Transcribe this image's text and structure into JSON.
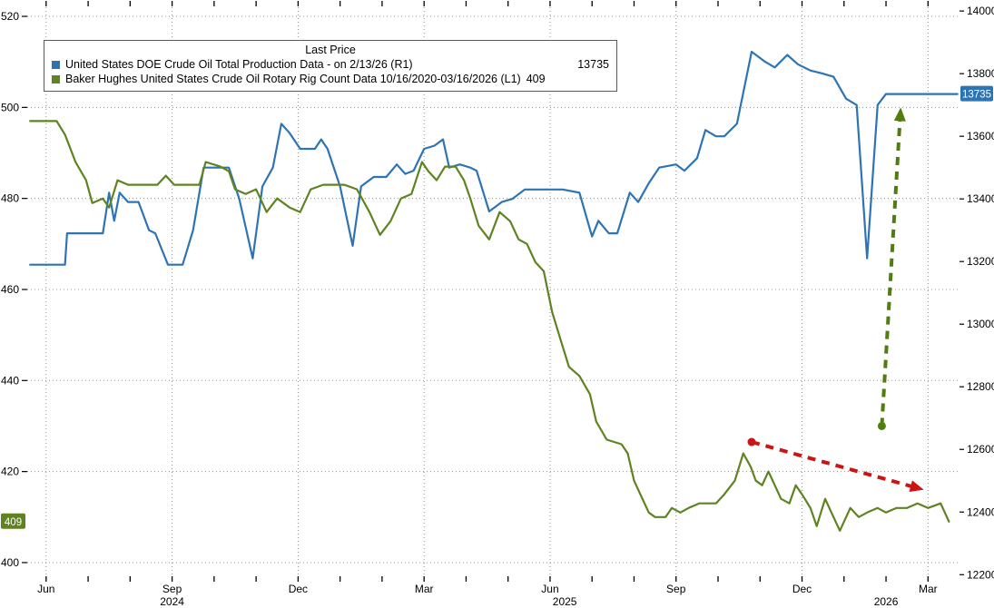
{
  "chart_data": {
    "type": "line",
    "legend": {
      "title": "Last Price",
      "entries": [
        {
          "label": "United States DOE Crude Oil Total Production Data -  on 2/13/26  (R1)",
          "value": "13735",
          "color": "#2e74b5",
          "axis": "right"
        },
        {
          "label": "Baker Hughes United States Crude Oil Rotary Rig Count Data 10/16/2020-03/16/2026   (L1)",
          "value": "409",
          "color": "#5e8320",
          "axis": "left"
        }
      ]
    },
    "x_axis": {
      "range": [
        -0.45,
        21.75
      ],
      "ticks": [
        {
          "pos": 0,
          "label": "Jun"
        },
        {
          "pos": 3,
          "label": "Sep"
        },
        {
          "pos": 6,
          "label": "Dec"
        },
        {
          "pos": 9,
          "label": "Mar"
        },
        {
          "pos": 12,
          "label": "Jun"
        },
        {
          "pos": 15,
          "label": "Sep"
        },
        {
          "pos": 18,
          "label": "Dec"
        },
        {
          "pos": 21,
          "label": "Mar"
        }
      ],
      "year_labels": [
        {
          "pos": 3,
          "label": "2024"
        },
        {
          "pos": 12.35,
          "label": "2025"
        },
        {
          "pos": 20,
          "label": "2026"
        }
      ]
    },
    "left_axis": {
      "range": [
        397,
        522
      ],
      "ticks": [
        400,
        420,
        440,
        460,
        480,
        500,
        520
      ],
      "last_value": 409,
      "badge": "409",
      "badge_color": "#5e8320"
    },
    "right_axis": {
      "range": [
        12195,
        14012
      ],
      "ticks": [
        12200,
        12400,
        12600,
        12800,
        13000,
        13200,
        13400,
        13600,
        13800,
        14000
      ],
      "last_value": 13735,
      "badge": "13735",
      "badge_color": "#2e74b5"
    },
    "grid_color": "#8f8f8f",
    "series": [
      {
        "name": "United States DOE Crude Oil Total Production Data",
        "axis": "right",
        "color": "#2e74b5",
        "points": [
          [
            -0.38,
            13190
          ],
          [
            0.45,
            13190
          ],
          [
            0.5,
            13290
          ],
          [
            1.35,
            13290
          ],
          [
            1.5,
            13420
          ],
          [
            1.62,
            13330
          ],
          [
            1.75,
            13420
          ],
          [
            1.95,
            13390
          ],
          [
            2.2,
            13390
          ],
          [
            2.45,
            13300
          ],
          [
            2.6,
            13290
          ],
          [
            2.9,
            13190
          ],
          [
            3.25,
            13190
          ],
          [
            3.5,
            13300
          ],
          [
            3.75,
            13500
          ],
          [
            4.35,
            13500
          ],
          [
            4.6,
            13400
          ],
          [
            4.92,
            13210
          ],
          [
            5.15,
            13440
          ],
          [
            5.4,
            13500
          ],
          [
            5.6,
            13640
          ],
          [
            5.8,
            13610
          ],
          [
            6.05,
            13560
          ],
          [
            6.4,
            13560
          ],
          [
            6.55,
            13590
          ],
          [
            6.7,
            13560
          ],
          [
            7.0,
            13440
          ],
          [
            7.3,
            13250
          ],
          [
            7.5,
            13440
          ],
          [
            7.8,
            13470
          ],
          [
            8.1,
            13470
          ],
          [
            8.35,
            13510
          ],
          [
            8.55,
            13480
          ],
          [
            8.75,
            13490
          ],
          [
            9.0,
            13560
          ],
          [
            9.25,
            13570
          ],
          [
            9.45,
            13590
          ],
          [
            9.6,
            13500
          ],
          [
            9.85,
            13510
          ],
          [
            10.1,
            13500
          ],
          [
            10.25,
            13490
          ],
          [
            10.55,
            13360
          ],
          [
            10.85,
            13390
          ],
          [
            11.1,
            13400
          ],
          [
            11.4,
            13430
          ],
          [
            11.9,
            13430
          ],
          [
            12.3,
            13430
          ],
          [
            12.7,
            13420
          ],
          [
            13.0,
            13280
          ],
          [
            13.15,
            13330
          ],
          [
            13.4,
            13290
          ],
          [
            13.6,
            13290
          ],
          [
            13.9,
            13420
          ],
          [
            14.1,
            13390
          ],
          [
            14.35,
            13450
          ],
          [
            14.6,
            13500
          ],
          [
            15.0,
            13510
          ],
          [
            15.2,
            13490
          ],
          [
            15.5,
            13530
          ],
          [
            15.7,
            13620
          ],
          [
            15.95,
            13600
          ],
          [
            16.15,
            13600
          ],
          [
            16.45,
            13640
          ],
          [
            16.8,
            13870
          ],
          [
            17.1,
            13840
          ],
          [
            17.35,
            13820
          ],
          [
            17.65,
            13860
          ],
          [
            17.9,
            13830
          ],
          [
            18.2,
            13810
          ],
          [
            18.5,
            13800
          ],
          [
            18.75,
            13790
          ],
          [
            19.05,
            13720
          ],
          [
            19.3,
            13700
          ],
          [
            19.55,
            13210
          ],
          [
            19.8,
            13700
          ],
          [
            20.0,
            13735
          ],
          [
            21.7,
            13735
          ]
        ]
      },
      {
        "name": "Baker Hughes United States Crude Oil Rotary Rig Count Data",
        "axis": "left",
        "color": "#5e8320",
        "points": [
          [
            -0.38,
            497
          ],
          [
            0.25,
            497
          ],
          [
            0.45,
            494
          ],
          [
            0.7,
            488
          ],
          [
            0.95,
            484
          ],
          [
            1.1,
            479
          ],
          [
            1.35,
            480
          ],
          [
            1.5,
            478
          ],
          [
            1.7,
            484
          ],
          [
            1.95,
            483
          ],
          [
            2.65,
            483
          ],
          [
            2.85,
            485
          ],
          [
            3.05,
            483
          ],
          [
            3.65,
            483
          ],
          [
            3.8,
            488
          ],
          [
            4.15,
            487
          ],
          [
            4.35,
            486
          ],
          [
            4.5,
            482
          ],
          [
            4.75,
            481
          ],
          [
            5.0,
            482
          ],
          [
            5.25,
            477
          ],
          [
            5.5,
            480
          ],
          [
            5.8,
            478
          ],
          [
            6.05,
            477
          ],
          [
            6.3,
            482
          ],
          [
            6.6,
            483
          ],
          [
            7.1,
            483
          ],
          [
            7.4,
            482
          ],
          [
            7.7,
            477
          ],
          [
            7.95,
            472
          ],
          [
            8.2,
            475
          ],
          [
            8.45,
            480
          ],
          [
            8.7,
            481
          ],
          [
            8.95,
            488
          ],
          [
            9.1,
            486
          ],
          [
            9.3,
            484
          ],
          [
            9.5,
            487
          ],
          [
            9.75,
            487
          ],
          [
            9.95,
            484
          ],
          [
            10.1,
            480
          ],
          [
            10.3,
            474
          ],
          [
            10.55,
            471
          ],
          [
            10.8,
            477
          ],
          [
            11.05,
            475
          ],
          [
            11.25,
            471
          ],
          [
            11.45,
            470
          ],
          [
            11.65,
            466
          ],
          [
            11.85,
            464
          ],
          [
            12.05,
            455
          ],
          [
            12.25,
            449
          ],
          [
            12.45,
            443
          ],
          [
            12.7,
            441
          ],
          [
            12.95,
            437
          ],
          [
            13.1,
            431
          ],
          [
            13.35,
            427
          ],
          [
            13.7,
            426
          ],
          [
            13.85,
            424
          ],
          [
            14.0,
            418
          ],
          [
            14.2,
            414
          ],
          [
            14.35,
            411
          ],
          [
            14.5,
            410
          ],
          [
            14.75,
            410
          ],
          [
            14.9,
            412
          ],
          [
            15.1,
            411
          ],
          [
            15.3,
            412
          ],
          [
            15.55,
            413
          ],
          [
            15.95,
            413
          ],
          [
            16.15,
            415
          ],
          [
            16.4,
            418
          ],
          [
            16.6,
            424
          ],
          [
            16.78,
            421
          ],
          [
            16.9,
            418
          ],
          [
            17.05,
            417
          ],
          [
            17.2,
            420
          ],
          [
            17.4,
            416
          ],
          [
            17.5,
            414
          ],
          [
            17.7,
            413
          ],
          [
            17.85,
            417
          ],
          [
            18.0,
            415
          ],
          [
            18.2,
            412
          ],
          [
            18.35,
            408
          ],
          [
            18.55,
            414
          ],
          [
            18.7,
            411
          ],
          [
            18.9,
            407
          ],
          [
            19.15,
            412
          ],
          [
            19.35,
            410
          ],
          [
            19.55,
            411
          ],
          [
            19.8,
            412
          ],
          [
            20.0,
            411
          ],
          [
            20.25,
            412
          ],
          [
            20.5,
            412
          ],
          [
            20.75,
            413
          ],
          [
            21.0,
            412
          ],
          [
            21.3,
            413
          ],
          [
            21.5,
            409
          ]
        ]
      }
    ],
    "annotations": [
      {
        "name": "production-rebound-arrow",
        "color": "#4f7d0e",
        "style": "dashed",
        "axis": "left",
        "from": [
          19.9,
          430
        ],
        "to": [
          20.35,
          500
        ]
      },
      {
        "name": "rig-count-decline-arrow",
        "color": "#cc1414",
        "style": "dashed",
        "axis": "left",
        "from": [
          16.8,
          426.5
        ],
        "to": [
          20.9,
          416
        ]
      }
    ]
  }
}
